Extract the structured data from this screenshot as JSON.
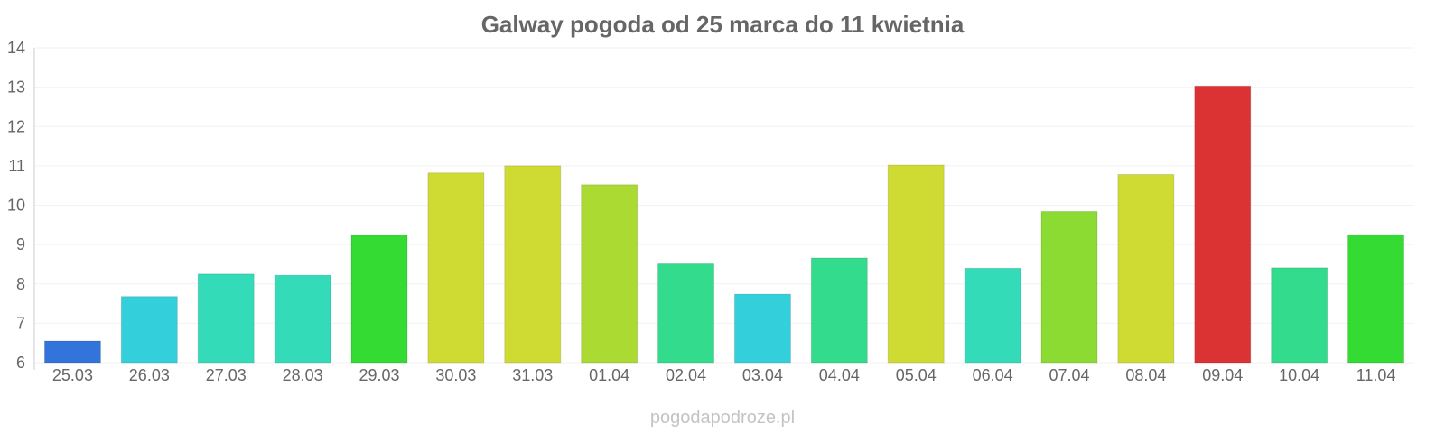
{
  "chart_data": {
    "type": "bar",
    "title": "Galway pogoda od 25 marca do 11 kwietnia",
    "xlabel": "",
    "ylabel": "",
    "ylim": [
      6,
      14
    ],
    "yticks": [
      "6",
      "7",
      "8",
      "9",
      "10",
      "11",
      "12",
      "13",
      "14"
    ],
    "grid": true,
    "categories": [
      "25.03",
      "26.03",
      "27.03",
      "28.03",
      "29.03",
      "30.03",
      "31.03",
      "01.04",
      "02.04",
      "03.04",
      "04.04",
      "05.04",
      "06.04",
      "07.04",
      "08.04",
      "09.04",
      "10.04",
      "11.04"
    ],
    "values": [
      6.55,
      7.68,
      8.25,
      8.22,
      9.24,
      10.82,
      11.0,
      10.52,
      8.51,
      7.74,
      8.66,
      11.02,
      8.4,
      9.84,
      10.78,
      13.03,
      8.41,
      9.25
    ],
    "colors": [
      "#3374db",
      "#33cfdb",
      "#33dbb9",
      "#33dbb9",
      "#33db33",
      "#cfdb33",
      "#cfdb33",
      "#abdb33",
      "#33db8c",
      "#33cfdb",
      "#33db8c",
      "#cfdb33",
      "#33dbb9",
      "#8cdb33",
      "#cfdb33",
      "#db3333",
      "#33db8c",
      "#33db33"
    ]
  },
  "watermark": "pogodapodroze.pl"
}
